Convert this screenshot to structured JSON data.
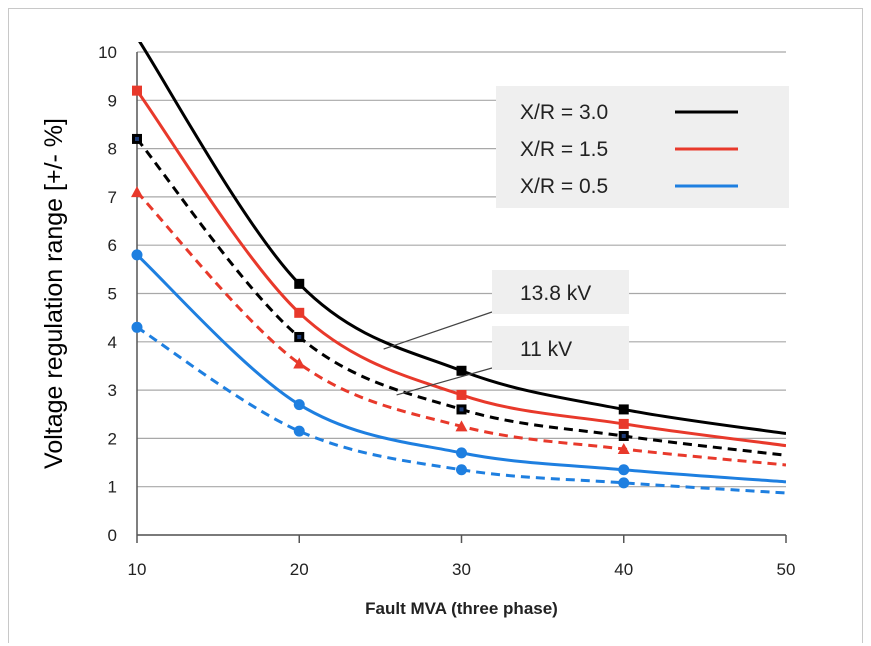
{
  "chart_data": {
    "type": "line",
    "title": "",
    "xlabel": "Fault MVA (three phase)",
    "ylabel": "Voltage regulation range [+/- %]",
    "xlim": [
      10,
      50
    ],
    "ylim": [
      0,
      10
    ],
    "x_ticks": [
      10,
      20,
      30,
      40,
      50
    ],
    "y_ticks": [
      0,
      1,
      2,
      3,
      4,
      5,
      6,
      7,
      8,
      9,
      10
    ],
    "grid": "horizontal",
    "legend": {
      "position": "top-right",
      "entries": [
        {
          "label": "X/R = 3.0",
          "color": "#000000"
        },
        {
          "label": "X/R = 1.5",
          "color": "#e8392b"
        },
        {
          "label": "X/R = 0.5",
          "color": "#1e7fe0"
        }
      ]
    },
    "annotations": [
      {
        "text": "13.8 kV",
        "points_to": "solid lines"
      },
      {
        "text": "11 kV",
        "points_to": "dashed lines"
      }
    ],
    "series": [
      {
        "voltage": "13.8 kV",
        "xr": "3.0",
        "color": "#000000",
        "dashed": false,
        "marker": "square",
        "x": [
          10,
          20,
          30,
          40,
          50
        ],
        "y": [
          10.3,
          5.2,
          3.4,
          2.6,
          2.1
        ],
        "marker_x": [
          20,
          30,
          40
        ]
      },
      {
        "voltage": "13.8 kV",
        "xr": "1.5",
        "color": "#e8392b",
        "dashed": false,
        "marker": "square",
        "x": [
          10,
          20,
          30,
          40,
          50
        ],
        "y": [
          9.2,
          4.6,
          2.9,
          2.3,
          1.85
        ],
        "marker_x": [
          10,
          20,
          30,
          40
        ]
      },
      {
        "voltage": "13.8 kV",
        "xr": "0.5",
        "color": "#1e7fe0",
        "dashed": false,
        "marker": "circle",
        "x": [
          10,
          20,
          30,
          40,
          50
        ],
        "y": [
          5.8,
          2.7,
          1.7,
          1.35,
          1.1
        ],
        "marker_x": [
          10,
          20,
          30,
          40
        ]
      },
      {
        "voltage": "11 kV",
        "xr": "3.0",
        "color": "#000000",
        "dashed": true,
        "marker": "square",
        "x": [
          10,
          20,
          30,
          40,
          50
        ],
        "y": [
          8.2,
          4.1,
          2.6,
          2.05,
          1.65
        ],
        "marker_x": [
          10,
          20,
          30,
          40
        ]
      },
      {
        "voltage": "11 kV",
        "xr": "1.5",
        "color": "#e8392b",
        "dashed": true,
        "marker": "triangle",
        "x": [
          10,
          20,
          30,
          40,
          50
        ],
        "y": [
          7.1,
          3.55,
          2.25,
          1.78,
          1.45
        ],
        "marker_x": [
          10,
          20,
          30,
          40
        ]
      },
      {
        "voltage": "11 kV",
        "xr": "0.5",
        "color": "#1e7fe0",
        "dashed": true,
        "marker": "circle",
        "x": [
          10,
          20,
          30,
          40,
          50
        ],
        "y": [
          4.3,
          2.15,
          1.35,
          1.08,
          0.87
        ],
        "marker_x": [
          10,
          20,
          30,
          40
        ]
      }
    ]
  }
}
